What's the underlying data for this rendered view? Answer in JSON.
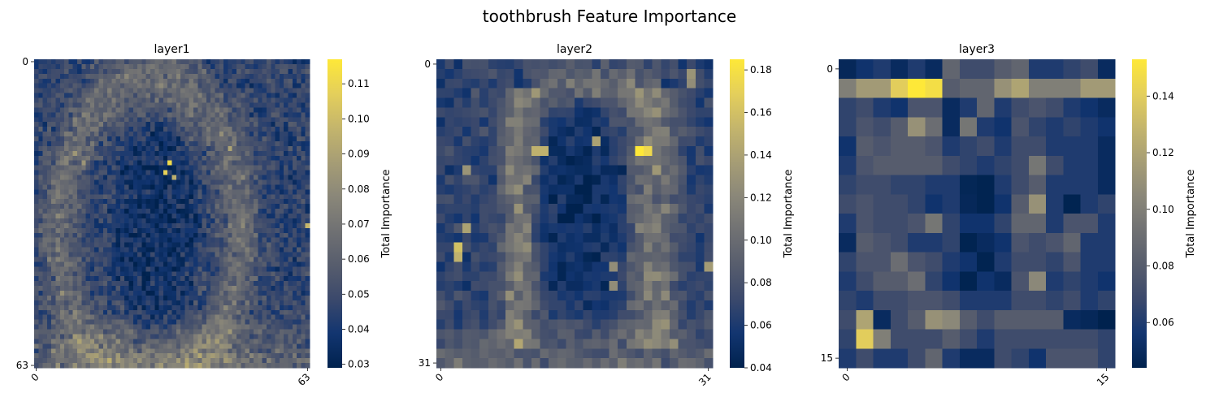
{
  "title": "toothbrush Feature Importance",
  "colormap": "cividis",
  "colormap_stops": [
    "#00224e",
    "#123570",
    "#3b496c",
    "#575d6d",
    "#707173",
    "#8a8779",
    "#a69d75",
    "#c4b56c",
    "#e4cf5b",
    "#fee838"
  ],
  "chart_data": [
    {
      "type": "heatmap",
      "title": "layer1",
      "grid_size": 64,
      "x_ticks": [
        "0",
        "63"
      ],
      "y_ticks": [
        "0",
        "63"
      ],
      "colorbar_label": "Total Importance",
      "colorbar_range": [
        0.029,
        0.117
      ],
      "colorbar_ticks": [
        "0.03",
        "0.04",
        "0.05",
        "0.06",
        "0.07",
        "0.08",
        "0.09",
        "0.10",
        "0.11"
      ],
      "colorbar_tick_values": [
        0.03,
        0.04,
        0.05,
        0.06,
        0.07,
        0.08,
        0.09,
        0.1,
        0.11
      ],
      "seed": 11,
      "base": 0.046,
      "noise": 0.014,
      "features": [
        {
          "kind": "ring",
          "cx": 0.42,
          "cy": 0.56,
          "rx": 0.33,
          "ry": 0.5,
          "w": 0.05,
          "amp": 0.024
        },
        {
          "kind": "ellipse_low",
          "cx": 0.44,
          "cy": 0.55,
          "rx": 0.16,
          "ry": 0.36,
          "amp": -0.01
        },
        {
          "kind": "band_bottom",
          "y0": 0.8,
          "amp": 0.018
        },
        {
          "kind": "spots",
          "cells": [
            [
              21,
              31,
              0.112
            ],
            [
              23,
              30,
              0.108
            ],
            [
              24,
              32,
              0.095
            ],
            [
              18,
              45,
              0.09
            ],
            [
              34,
              63,
              0.098
            ],
            [
              19,
              9,
              0.085
            ],
            [
              21,
              11,
              0.084
            ]
          ]
        }
      ]
    },
    {
      "type": "heatmap",
      "title": "layer2",
      "grid_size": 32,
      "x_ticks": [
        "0",
        "31"
      ],
      "y_ticks": [
        "0",
        "31"
      ],
      "colorbar_label": "Total Importance",
      "colorbar_range": [
        0.04,
        0.185
      ],
      "colorbar_ticks": [
        "0.04",
        "0.06",
        "0.08",
        "0.10",
        "0.12",
        "0.14",
        "0.16",
        "0.18"
      ],
      "colorbar_tick_values": [
        0.04,
        0.06,
        0.08,
        0.1,
        0.12,
        0.14,
        0.16,
        0.18
      ],
      "seed": 22,
      "base": 0.068,
      "noise": 0.018,
      "features": [
        {
          "kind": "vline",
          "x": 0.3,
          "y0": 0.08,
          "y1": 0.95,
          "w": 0.045,
          "amp": 0.055
        },
        {
          "kind": "vline",
          "x": 0.79,
          "y0": 0.1,
          "y1": 0.95,
          "w": 0.06,
          "amp": 0.05
        },
        {
          "kind": "hline",
          "y": 0.08,
          "x0": 0.35,
          "x1": 0.82,
          "w": 0.04,
          "amp": 0.045
        },
        {
          "kind": "ellipse_low",
          "cx": 0.52,
          "cy": 0.48,
          "rx": 0.17,
          "ry": 0.36,
          "amp": -0.018
        },
        {
          "kind": "band_bottom",
          "y0": 0.82,
          "amp": 0.03
        },
        {
          "kind": "spots",
          "cells": [
            [
              9,
              23,
              0.185
            ],
            [
              9,
              24,
              0.175
            ],
            [
              9,
              11,
              0.15
            ],
            [
              9,
              12,
              0.15
            ],
            [
              19,
              2,
              0.16
            ],
            [
              20,
              2,
              0.15
            ],
            [
              17,
              3,
              0.14
            ],
            [
              8,
              18,
              0.14
            ],
            [
              11,
              3,
              0.13
            ],
            [
              21,
              31,
              0.135
            ],
            [
              21,
              20,
              0.125
            ],
            [
              23,
              20,
              0.125
            ],
            [
              1,
              29,
              0.13
            ],
            [
              2,
              29,
              0.125
            ]
          ]
        }
      ]
    },
    {
      "type": "heatmap",
      "title": "layer3",
      "grid_size": 16,
      "x_ticks": [
        "0",
        "15"
      ],
      "y_ticks": [
        "0",
        "15"
      ],
      "colorbar_label": "Total Importance",
      "colorbar_range": [
        0.044,
        0.153
      ],
      "colorbar_ticks": [
        "0.06",
        "0.08",
        "0.10",
        "0.12",
        "0.14"
      ],
      "colorbar_tick_values": [
        0.06,
        0.08,
        0.1,
        0.12,
        0.14
      ],
      "matrix": [
        [
          0.048,
          0.055,
          0.06,
          0.05,
          0.06,
          0.05,
          0.085,
          0.07,
          0.07,
          0.08,
          0.085,
          0.06,
          0.06,
          0.065,
          0.07,
          0.05
        ],
        [
          0.1,
          0.115,
          0.115,
          0.14,
          0.153,
          0.148,
          0.08,
          0.085,
          0.085,
          0.11,
          0.12,
          0.1,
          0.1,
          0.1,
          0.115,
          0.115
        ],
        [
          0.065,
          0.07,
          0.06,
          0.055,
          0.075,
          0.075,
          0.05,
          0.06,
          0.085,
          0.06,
          0.07,
          0.075,
          0.07,
          0.06,
          0.055,
          0.05
        ],
        [
          0.065,
          0.075,
          0.07,
          0.08,
          0.11,
          0.09,
          0.05,
          0.095,
          0.06,
          0.055,
          0.075,
          0.065,
          0.06,
          0.065,
          0.06,
          0.055
        ],
        [
          0.055,
          0.08,
          0.075,
          0.08,
          0.08,
          0.075,
          0.06,
          0.065,
          0.07,
          0.06,
          0.07,
          0.07,
          0.06,
          0.06,
          0.06,
          0.05
        ],
        [
          0.06,
          0.075,
          0.08,
          0.08,
          0.08,
          0.08,
          0.07,
          0.065,
          0.06,
          0.065,
          0.07,
          0.095,
          0.07,
          0.06,
          0.06,
          0.05
        ],
        [
          0.065,
          0.07,
          0.07,
          0.065,
          0.065,
          0.06,
          0.06,
          0.047,
          0.045,
          0.06,
          0.07,
          0.08,
          0.06,
          0.06,
          0.06,
          0.05
        ],
        [
          0.07,
          0.075,
          0.07,
          0.07,
          0.065,
          0.055,
          0.06,
          0.048,
          0.045,
          0.055,
          0.08,
          0.11,
          0.06,
          0.045,
          0.06,
          0.065
        ],
        [
          0.06,
          0.075,
          0.07,
          0.07,
          0.075,
          0.095,
          0.065,
          0.055,
          0.055,
          0.065,
          0.085,
          0.085,
          0.06,
          0.075,
          0.075,
          0.06
        ],
        [
          0.05,
          0.08,
          0.075,
          0.07,
          0.06,
          0.06,
          0.065,
          0.045,
          0.05,
          0.055,
          0.075,
          0.07,
          0.075,
          0.085,
          0.06,
          0.06
        ],
        [
          0.065,
          0.075,
          0.075,
          0.09,
          0.075,
          0.07,
          0.06,
          0.055,
          0.045,
          0.06,
          0.07,
          0.07,
          0.065,
          0.075,
          0.06,
          0.06
        ],
        [
          0.06,
          0.07,
          0.08,
          0.08,
          0.09,
          0.065,
          0.055,
          0.045,
          0.055,
          0.05,
          0.075,
          0.105,
          0.06,
          0.065,
          0.06,
          0.055
        ],
        [
          0.065,
          0.06,
          0.07,
          0.07,
          0.075,
          0.075,
          0.07,
          0.06,
          0.06,
          0.06,
          0.07,
          0.07,
          0.065,
          0.07,
          0.06,
          0.065
        ],
        [
          0.07,
          0.12,
          0.05,
          0.07,
          0.08,
          0.11,
          0.105,
          0.08,
          0.07,
          0.08,
          0.08,
          0.08,
          0.08,
          0.05,
          0.048,
          0.044
        ],
        [
          0.065,
          0.14,
          0.1,
          0.07,
          0.07,
          0.07,
          0.08,
          0.07,
          0.06,
          0.07,
          0.07,
          0.07,
          0.07,
          0.07,
          0.07,
          0.065
        ],
        [
          0.06,
          0.07,
          0.06,
          0.06,
          0.07,
          0.085,
          0.06,
          0.05,
          0.05,
          0.07,
          0.065,
          0.055,
          0.075,
          0.075,
          0.075,
          0.065
        ]
      ]
    }
  ]
}
